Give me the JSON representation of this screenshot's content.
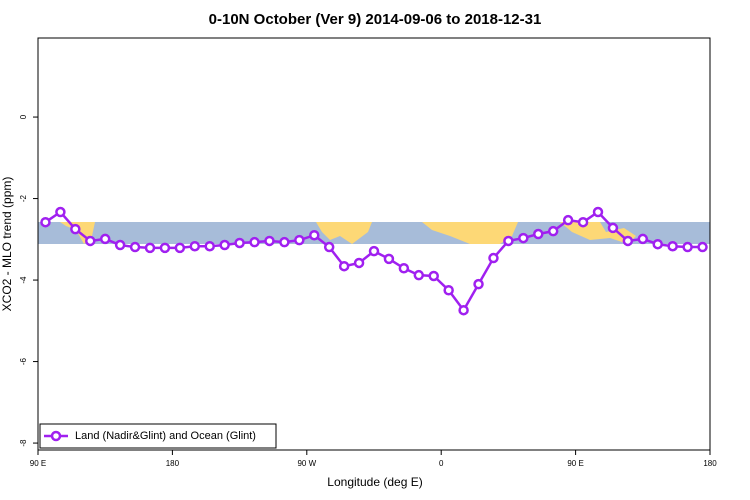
{
  "chart_data": {
    "type": "line",
    "title": "0-10N October (Ver 9)   2014-09-06 to 2018-12-31",
    "x_label": "Longitude (deg E)",
    "y_label": "XCO2 - MLO trend (ppm)",
    "x": [
      95,
      105,
      115,
      125,
      135,
      145,
      155,
      165,
      175,
      185,
      195,
      205,
      215,
      225,
      235,
      245,
      255,
      265,
      275,
      285,
      295,
      305,
      315,
      325,
      335,
      345,
      355,
      365,
      375,
      385,
      395,
      405,
      415,
      425,
      435,
      445,
      455,
      465,
      475,
      485,
      495,
      505,
      515,
      525,
      535
    ],
    "series": [
      {
        "name": "Land (Nadir&Glint) and Ocean (Glint)",
        "color": "#a020f0",
        "values": [
          -2.58,
          -2.33,
          -2.75,
          -3.04,
          -2.99,
          -3.14,
          -3.19,
          -3.21,
          -3.21,
          -3.21,
          -3.17,
          -3.17,
          -3.14,
          -3.09,
          -3.07,
          -3.04,
          -3.07,
          -3.02,
          -2.9,
          -3.19,
          -3.66,
          -3.58,
          -3.29,
          -3.48,
          -3.71,
          -3.88,
          -3.9,
          -4.25,
          -4.74,
          -4.1,
          -3.46,
          -3.04,
          -2.97,
          -2.87,
          -2.8,
          -2.53,
          -2.58,
          -2.33,
          -2.72,
          -3.04,
          -2.99,
          -3.12,
          -3.17,
          -3.19,
          -3.19
        ]
      }
    ],
    "xlim": [
      90,
      540
    ],
    "xticks": [
      {
        "value": 90,
        "label": "90 E"
      },
      180,
      {
        "value": 270,
        "label": "90 W"
      },
      {
        "value": 360,
        "label": "0"
      },
      {
        "value": 450,
        "label": "90 E"
      },
      {
        "value": 540,
        "label": "180"
      }
    ],
    "ylim": [
      -8.17,
      1.94
    ],
    "yticks": [
      0,
      -2,
      -4,
      -6,
      -8
    ],
    "legend": "bottom-left"
  }
}
